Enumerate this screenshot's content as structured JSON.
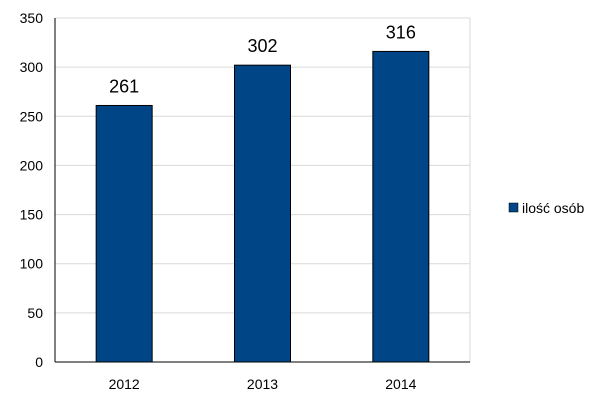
{
  "chart_data": {
    "type": "bar",
    "title": "",
    "xlabel": "",
    "ylabel": "",
    "categories": [
      "2012",
      "2013",
      "2014"
    ],
    "series": [
      {
        "name": "ilość osób",
        "values": [
          261,
          302,
          316
        ],
        "color": "#004586"
      }
    ],
    "data_labels": [
      "261",
      "302",
      "316"
    ],
    "ylim": [
      0,
      350
    ],
    "yticks": [
      "0",
      "50",
      "100",
      "150",
      "200",
      "250",
      "300",
      "350"
    ],
    "grid": true,
    "gridline_color": "#d9d9d9",
    "bar_outline_color": "#000000",
    "legend": {
      "position": "right"
    }
  }
}
